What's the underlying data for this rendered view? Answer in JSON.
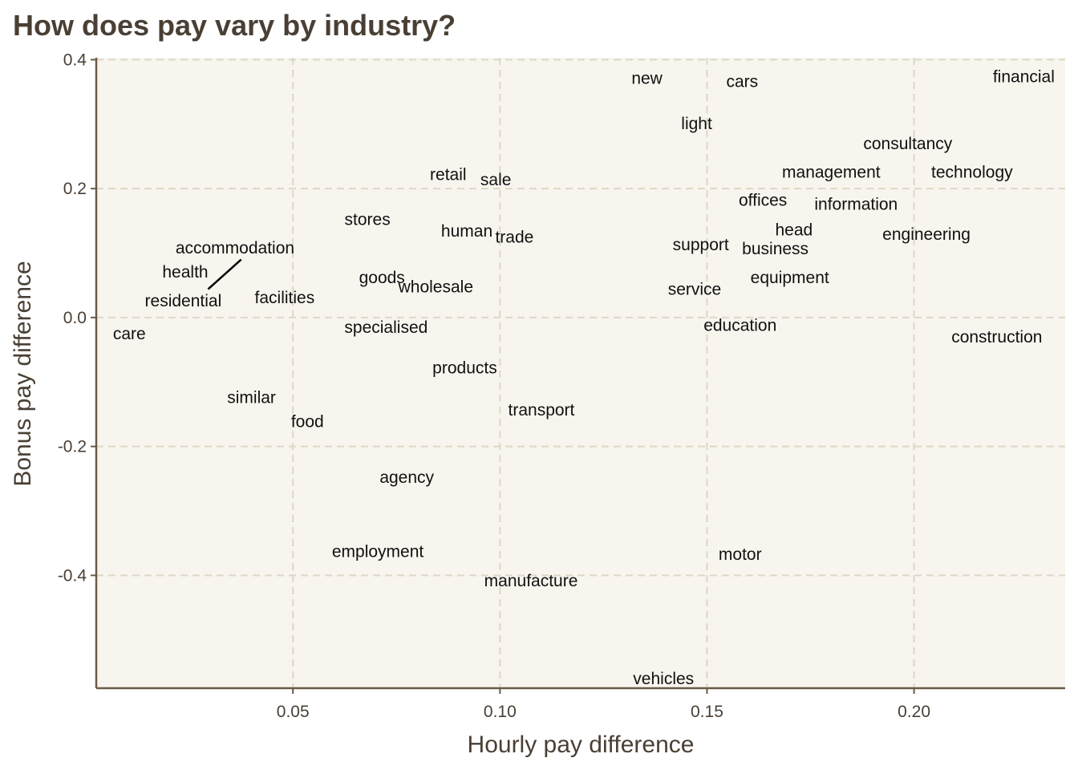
{
  "chart_data": {
    "type": "scatter",
    "title": "How does pay vary by industry?",
    "xlabel": "Hourly pay difference",
    "ylabel": "Bonus pay difference",
    "xlim": [
      0.0025,
      0.2365
    ],
    "ylim": [
      -0.575,
      0.403
    ],
    "xticks": [
      0.05,
      0.1,
      0.15,
      0.2
    ],
    "xtick_labels": [
      "0.05",
      "0.10",
      "0.15",
      "0.20"
    ],
    "yticks": [
      -0.4,
      -0.2,
      0.0,
      0.2,
      0.4
    ],
    "ytick_labels": [
      "-0.4",
      "-0.2",
      "0.0",
      "0.2",
      "0.4"
    ],
    "grid": true,
    "background": "#f8f5ee",
    "points": [
      {
        "label": "new",
        "x": 0.1355,
        "y": 0.371
      },
      {
        "label": "cars",
        "x": 0.1585,
        "y": 0.366
      },
      {
        "label": "financial",
        "x": 0.2265,
        "y": 0.374
      },
      {
        "label": "light",
        "x": 0.1475,
        "y": 0.301
      },
      {
        "label": "consultancy",
        "x": 0.1985,
        "y": 0.27
      },
      {
        "label": "management",
        "x": 0.18,
        "y": 0.226
      },
      {
        "label": "technology",
        "x": 0.214,
        "y": 0.226
      },
      {
        "label": "retail",
        "x": 0.0875,
        "y": 0.222
      },
      {
        "label": "sale",
        "x": 0.099,
        "y": 0.214
      },
      {
        "label": "offices",
        "x": 0.1635,
        "y": 0.182
      },
      {
        "label": "information",
        "x": 0.186,
        "y": 0.176
      },
      {
        "label": "stores",
        "x": 0.068,
        "y": 0.152
      },
      {
        "label": "head",
        "x": 0.171,
        "y": 0.136
      },
      {
        "label": "human",
        "x": 0.092,
        "y": 0.134
      },
      {
        "label": "trade",
        "x": 0.1035,
        "y": 0.125
      },
      {
        "label": "engineering",
        "x": 0.203,
        "y": 0.129
      },
      {
        "label": "support",
        "x": 0.1485,
        "y": 0.113
      },
      {
        "label": "business",
        "x": 0.1665,
        "y": 0.107
      },
      {
        "label": "accommodation",
        "x": 0.036,
        "y": 0.108
      },
      {
        "label": "health",
        "x": 0.024,
        "y": 0.071
      },
      {
        "label": "goods",
        "x": 0.0715,
        "y": 0.062
      },
      {
        "label": "equipment",
        "x": 0.17,
        "y": 0.062
      },
      {
        "label": "wholesale",
        "x": 0.0845,
        "y": 0.048
      },
      {
        "label": "service",
        "x": 0.147,
        "y": 0.044
      },
      {
        "label": "residential",
        "x": 0.0235,
        "y": 0.026
      },
      {
        "label": "facilities",
        "x": 0.048,
        "y": 0.031
      },
      {
        "label": "care",
        "x": 0.0105,
        "y": -0.025
      },
      {
        "label": "specialised",
        "x": 0.0725,
        "y": -0.015
      },
      {
        "label": "education",
        "x": 0.158,
        "y": -0.012
      },
      {
        "label": "construction",
        "x": 0.22,
        "y": -0.03
      },
      {
        "label": "products",
        "x": 0.0915,
        "y": -0.078
      },
      {
        "label": "similar",
        "x": 0.04,
        "y": -0.124
      },
      {
        "label": "transport",
        "x": 0.11,
        "y": -0.143
      },
      {
        "label": "food",
        "x": 0.0535,
        "y": -0.161
      },
      {
        "label": "agency",
        "x": 0.0775,
        "y": -0.248
      },
      {
        "label": "employment",
        "x": 0.0705,
        "y": -0.363
      },
      {
        "label": "motor",
        "x": 0.158,
        "y": -0.367
      },
      {
        "label": "manufacture",
        "x": 0.1075,
        "y": -0.408
      },
      {
        "label": "vehicles",
        "x": 0.1395,
        "y": -0.56
      }
    ],
    "leader_lines": [
      {
        "x1": 0.0295,
        "y1": 0.044,
        "x2": 0.0375,
        "y2": 0.09
      }
    ]
  }
}
